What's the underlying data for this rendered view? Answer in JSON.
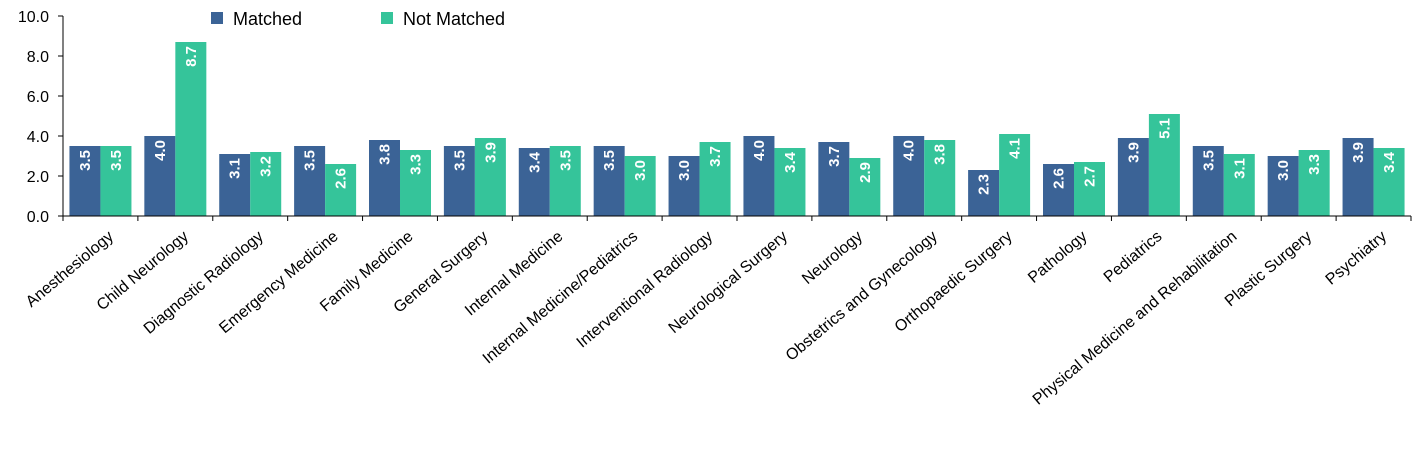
{
  "chart_data": {
    "type": "bar",
    "categories": [
      "Anesthesiology",
      "Child Neurology",
      "Diagnostic Radiology",
      "Emergency Medicine",
      "Family Medicine",
      "General Surgery",
      "Internal Medicine",
      "Internal Medicine/Pediatrics",
      "Interventional Radiology",
      "Neurological Surgery",
      "Neurology",
      "Obstetrics and Gynecology",
      "Orthopaedic Surgery",
      "Pathology",
      "Pediatrics",
      "Physical Medicine and Rehabilitation",
      "Plastic Surgery",
      "Psychiatry"
    ],
    "series": [
      {
        "name": "Matched",
        "color": "#3b6396",
        "values": [
          3.5,
          4.0,
          3.1,
          3.5,
          3.8,
          3.5,
          3.4,
          3.5,
          3.0,
          4.0,
          3.7,
          4.0,
          2.3,
          2.6,
          3.9,
          3.5,
          3.0,
          3.9
        ]
      },
      {
        "name": "Not Matched",
        "color": "#35c49a",
        "values": [
          3.5,
          8.7,
          3.2,
          2.6,
          3.3,
          3.9,
          3.5,
          3.0,
          3.7,
          3.4,
          2.9,
          3.8,
          4.1,
          2.7,
          5.1,
          3.1,
          3.3,
          3.4
        ]
      }
    ],
    "ylim": [
      0,
      10
    ],
    "yticks": [
      "0.0",
      "2.0",
      "4.0",
      "6.0",
      "8.0",
      "10.0"
    ],
    "legend_position": "top-left",
    "grid": false
  }
}
